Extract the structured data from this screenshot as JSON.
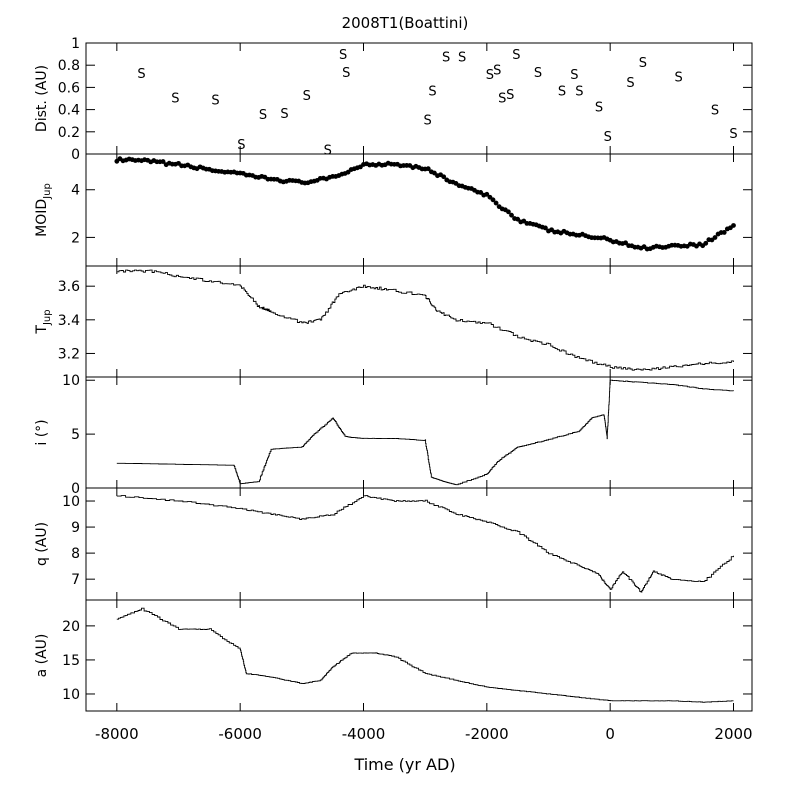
{
  "chart_data": {
    "type": "line",
    "title": "2008T1(Boattini)",
    "xlabel": "Time (yr AD)",
    "xlim": [
      -8500,
      2300
    ],
    "x_ticks": [
      -8000,
      -6000,
      -4000,
      -2000,
      0,
      2000
    ],
    "x_tick_labels": [
      "-8000",
      "-6000",
      "-4000",
      "-2000",
      "0",
      "2000"
    ],
    "panels": [
      {
        "id": "dist",
        "type": "scatter",
        "ylabel": "Dist. (AU)",
        "ylim": [
          0,
          1
        ],
        "y_ticks": [
          0,
          0.2,
          0.4,
          0.6,
          0.8,
          1
        ],
        "y_tick_labels": [
          "0",
          "0.2",
          "0.4",
          "0.6",
          "0.8",
          "1"
        ],
        "marker": "S",
        "reference_line": 0,
        "points": [
          [
            -7600,
            0.73
          ],
          [
            -7050,
            0.51
          ],
          [
            -6400,
            0.49
          ],
          [
            -5980,
            0.09
          ],
          [
            -5630,
            0.36
          ],
          [
            -5280,
            0.37
          ],
          [
            -4920,
            0.53
          ],
          [
            -4580,
            0.04
          ],
          [
            -4330,
            0.9
          ],
          [
            -4280,
            0.74
          ],
          [
            -2960,
            0.31
          ],
          [
            -2880,
            0.57
          ],
          [
            -2660,
            0.88
          ],
          [
            -2400,
            0.88
          ],
          [
            -1950,
            0.72
          ],
          [
            -1830,
            0.76
          ],
          [
            -1750,
            0.51
          ],
          [
            -1620,
            0.54
          ],
          [
            -1520,
            0.9
          ],
          [
            -1170,
            0.74
          ],
          [
            -780,
            0.57
          ],
          [
            -580,
            0.72
          ],
          [
            -500,
            0.57
          ],
          [
            -180,
            0.43
          ],
          [
            -40,
            0.16
          ],
          [
            330,
            0.65
          ],
          [
            530,
            0.83
          ],
          [
            1110,
            0.7
          ],
          [
            1700,
            0.4
          ],
          [
            2000,
            0.19
          ]
        ]
      },
      {
        "id": "moid",
        "type": "scatter",
        "ylabel": "MOID",
        "ylabel_sub": "Jup",
        "ylim": [
          0.8,
          5.5
        ],
        "y_ticks": [
          2,
          4
        ],
        "y_tick_labels": [
          "2",
          "4"
        ],
        "marker": "dot",
        "x": [
          -8000,
          -7500,
          -7000,
          -6500,
          -6000,
          -5500,
          -5000,
          -4500,
          -4000,
          -3500,
          -3000,
          -2500,
          -2000,
          -1500,
          -1000,
          -500,
          0,
          500,
          1000,
          1500,
          2000
        ],
        "values": [
          5.25,
          5.2,
          5.05,
          4.85,
          4.65,
          4.45,
          4.3,
          4.5,
          5.05,
          5.1,
          4.9,
          4.25,
          3.75,
          2.75,
          2.3,
          2.1,
          1.9,
          1.55,
          1.65,
          1.7,
          2.5
        ]
      },
      {
        "id": "tjup",
        "type": "line",
        "ylabel": "T",
        "ylabel_sub": "Jup",
        "ylim": [
          3.06,
          3.72
        ],
        "y_ticks": [
          3.2,
          3.4,
          3.6
        ],
        "y_tick_labels": [
          "3.2",
          "3.4",
          "3.6"
        ],
        "x": [
          -8000,
          -7500,
          -7000,
          -6500,
          -6000,
          -5700,
          -5500,
          -5000,
          -4700,
          -4400,
          -4000,
          -3600,
          -3000,
          -2800,
          -2500,
          -2000,
          -1500,
          -1000,
          -500,
          0,
          500,
          1000,
          1500,
          2000
        ],
        "values": [
          3.69,
          3.69,
          3.66,
          3.63,
          3.6,
          3.48,
          3.45,
          3.38,
          3.4,
          3.55,
          3.6,
          3.58,
          3.54,
          3.45,
          3.4,
          3.38,
          3.3,
          3.25,
          3.17,
          3.12,
          3.1,
          3.12,
          3.14,
          3.15
        ]
      },
      {
        "id": "incl",
        "type": "line",
        "ylabel": "i (°)",
        "ylim": [
          0,
          10.3
        ],
        "y_ticks": [
          0,
          5,
          10
        ],
        "y_tick_labels": [
          "0",
          "5",
          "10"
        ],
        "x": [
          -8000,
          -6100,
          -6000,
          -5700,
          -5500,
          -5000,
          -4800,
          -4500,
          -4300,
          -4200,
          -4000,
          -3500,
          -3000,
          -2900,
          -2700,
          -2500,
          -2000,
          -1800,
          -1500,
          -1000,
          -500,
          -300,
          -100,
          -50,
          0,
          500,
          1000,
          1500,
          2000
        ],
        "values": [
          2.3,
          2.1,
          0.4,
          0.6,
          3.6,
          3.8,
          5.0,
          6.5,
          4.8,
          4.7,
          4.6,
          4.6,
          4.4,
          1.0,
          0.6,
          0.3,
          1.3,
          2.6,
          3.8,
          4.5,
          5.3,
          6.5,
          6.8,
          4.7,
          10.0,
          9.8,
          9.6,
          9.2,
          9.0
        ]
      },
      {
        "id": "q",
        "type": "line",
        "ylabel": "q (AU)",
        "ylim": [
          6.2,
          10.5
        ],
        "y_ticks": [
          7,
          8,
          9,
          10
        ],
        "y_tick_labels": [
          "7",
          "8",
          "9",
          "10"
        ],
        "x": [
          -8000,
          -7000,
          -6000,
          -5500,
          -5000,
          -4500,
          -4000,
          -3500,
          -3000,
          -2500,
          -2000,
          -1500,
          -1000,
          -500,
          -200,
          0,
          200,
          500,
          700,
          1000,
          1500,
          2000
        ],
        "values": [
          10.2,
          10.0,
          9.7,
          9.5,
          9.3,
          9.5,
          10.2,
          10.0,
          10.0,
          9.5,
          9.2,
          8.8,
          8.0,
          7.5,
          7.2,
          6.6,
          7.3,
          6.5,
          7.3,
          7.0,
          6.9,
          7.9
        ]
      },
      {
        "id": "a",
        "type": "line",
        "ylabel": "a (AU)",
        "ylim": [
          7.5,
          23.8
        ],
        "y_ticks": [
          10,
          15,
          20
        ],
        "y_tick_labels": [
          "10",
          "15",
          "20"
        ],
        "x": [
          -8000,
          -7600,
          -7000,
          -6500,
          -6000,
          -5900,
          -5500,
          -5000,
          -4700,
          -4500,
          -4200,
          -3800,
          -3500,
          -3000,
          -2500,
          -2000,
          -1500,
          -1000,
          -500,
          0,
          500,
          1000,
          1500,
          2000
        ],
        "values": [
          21,
          22.5,
          19.5,
          19.5,
          16.5,
          13,
          12.5,
          11.5,
          12,
          14,
          16,
          16,
          15.5,
          13,
          12,
          11,
          10.5,
          10,
          9.5,
          9,
          9,
          9,
          8.8,
          9
        ]
      }
    ]
  }
}
